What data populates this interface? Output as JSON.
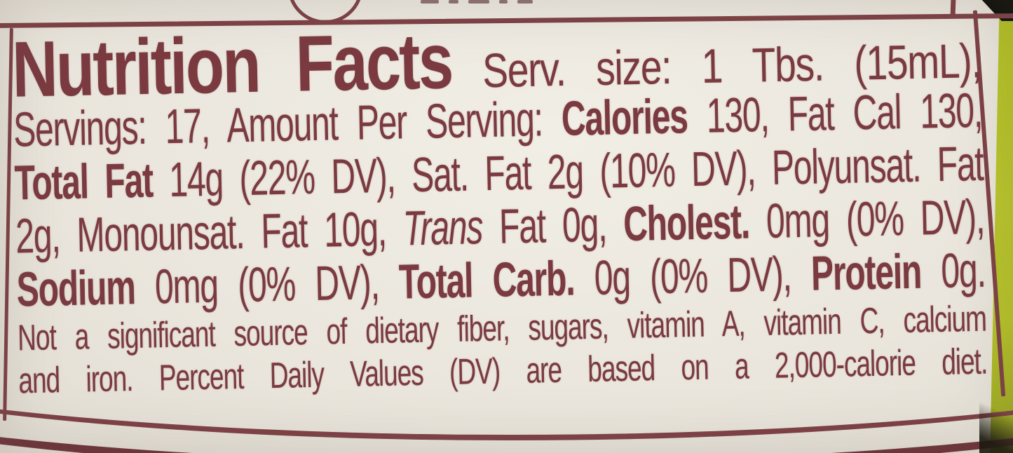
{
  "colors": {
    "label_text": "#7a3a40",
    "label_border": "#7d4045",
    "label_background": "#ece8df",
    "bottle_edge_green": "#b7c428",
    "corner_shadow": "#0c0c06"
  },
  "upper_section": {
    "circle_mark_icon": "cropped-circle-stamp",
    "divider_icon": "column-divider-line",
    "text_fragment_icon": "cropped-text-bottoms"
  },
  "nutrition_label": {
    "lines": [
      {
        "segments": [
          {
            "text": "Nutrition Facts",
            "style": "bold-title"
          },
          {
            "text": "Serv. size: 1 Tbs. (15mL),",
            "style": "regular"
          }
        ]
      },
      {
        "segments": [
          {
            "text": "Servings: 17, Amount Per Serving: ",
            "style": "regular"
          },
          {
            "text": "Calories",
            "style": "bold"
          },
          {
            "text": " 130, Fat Cal 130,",
            "style": "regular"
          }
        ]
      },
      {
        "segments": [
          {
            "text": "Total Fat",
            "style": "bold"
          },
          {
            "text": " 14g (22% DV), Sat. Fat 2g (10% DV), Polyunsat. Fat",
            "style": "regular"
          }
        ]
      },
      {
        "segments": [
          {
            "text": "2g, Monounsat. Fat 10g, ",
            "style": "regular"
          },
          {
            "text": "Trans",
            "style": "italic"
          },
          {
            "text": " Fat 0g, ",
            "style": "regular"
          },
          {
            "text": "Cholest.",
            "style": "bold"
          },
          {
            "text": " 0mg (0% DV),",
            "style": "regular"
          }
        ]
      },
      {
        "segments": [
          {
            "text": "Sodium",
            "style": "bold"
          },
          {
            "text": " 0mg (0% DV), ",
            "style": "regular"
          },
          {
            "text": "Total Carb.",
            "style": "bold"
          },
          {
            "text": " 0g (0% DV), ",
            "style": "regular"
          },
          {
            "text": "Protein",
            "style": "bold"
          },
          {
            "text": " 0g.",
            "style": "regular"
          }
        ]
      },
      {
        "segments": [
          {
            "text": "Not a significant source of dietary fiber, sugars, vitamin A, vitamin C, calcium",
            "style": "fine-print"
          }
        ]
      },
      {
        "segments": [
          {
            "text": "and iron. Percent Daily Values (DV) are based on a 2,000-calorie diet.",
            "style": "fine-print"
          }
        ]
      }
    ],
    "nutrition_values": {
      "serving_size": "1 Tbs. (15mL)",
      "servings_per_container": "17",
      "calories": "130",
      "fat_calories": "130",
      "total_fat": "14g",
      "total_fat_dv": "22%",
      "saturated_fat": "2g",
      "saturated_fat_dv": "10%",
      "polyunsaturated_fat": "2g",
      "monounsaturated_fat": "10g",
      "trans_fat": "0g",
      "cholesterol": "0mg",
      "cholesterol_dv": "0%",
      "sodium": "0mg",
      "sodium_dv": "0%",
      "total_carbohydrate": "0g",
      "total_carbohydrate_dv": "0%",
      "protein": "0g",
      "diet_basis": "2,000-calorie diet"
    }
  }
}
